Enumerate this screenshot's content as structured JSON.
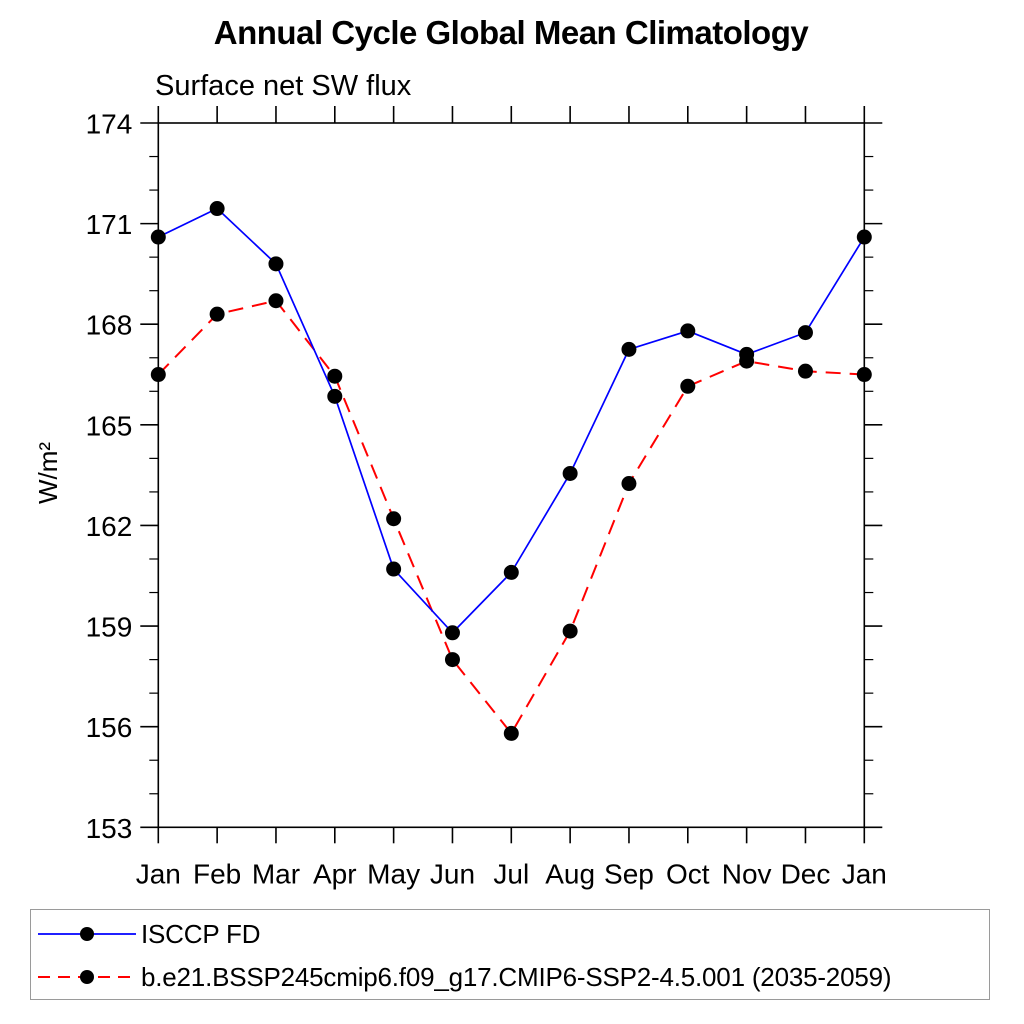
{
  "page": {
    "background_color": "#ffffff",
    "axis_color": "#000000",
    "legend_border_color": "#9a9a9a"
  },
  "chart_data": {
    "type": "line",
    "title": "Annual Cycle Global Mean Climatology",
    "subtitle": "Surface net SW flux",
    "xlabel": "",
    "ylabel": "W/m²",
    "categories": [
      "Jan",
      "Feb",
      "Mar",
      "Apr",
      "May",
      "Jun",
      "Jul",
      "Aug",
      "Sep",
      "Oct",
      "Nov",
      "Dec",
      "Jan"
    ],
    "ylim": [
      153,
      174
    ],
    "ytick_major_step": 3,
    "ytick_minor_step": 1,
    "ytick_major_labels": [
      "153",
      "156",
      "159",
      "162",
      "165",
      "168",
      "171",
      "174"
    ],
    "grid": false,
    "legend_position": "bottom-left-box",
    "series": [
      {
        "name": "ISCCP FD",
        "line_color": "#0000ff",
        "line_style": "solid",
        "marker": "filled-circle",
        "marker_color": "#000000",
        "values": [
          170.6,
          171.45,
          169.8,
          165.85,
          160.7,
          158.8,
          160.6,
          163.55,
          167.25,
          167.8,
          167.1,
          167.75,
          170.6
        ]
      },
      {
        "name": "b.e21.BSSP245cmip6.f09_g17.CMIP6-SSP2-4.5.001 (2035-2059)",
        "line_color": "#ff0000",
        "line_style": "dashed",
        "marker": "filled-circle",
        "marker_color": "#000000",
        "values": [
          166.5,
          168.3,
          168.7,
          166.45,
          162.2,
          158.0,
          155.8,
          158.85,
          163.25,
          166.15,
          166.9,
          166.6,
          166.5
        ]
      }
    ]
  }
}
